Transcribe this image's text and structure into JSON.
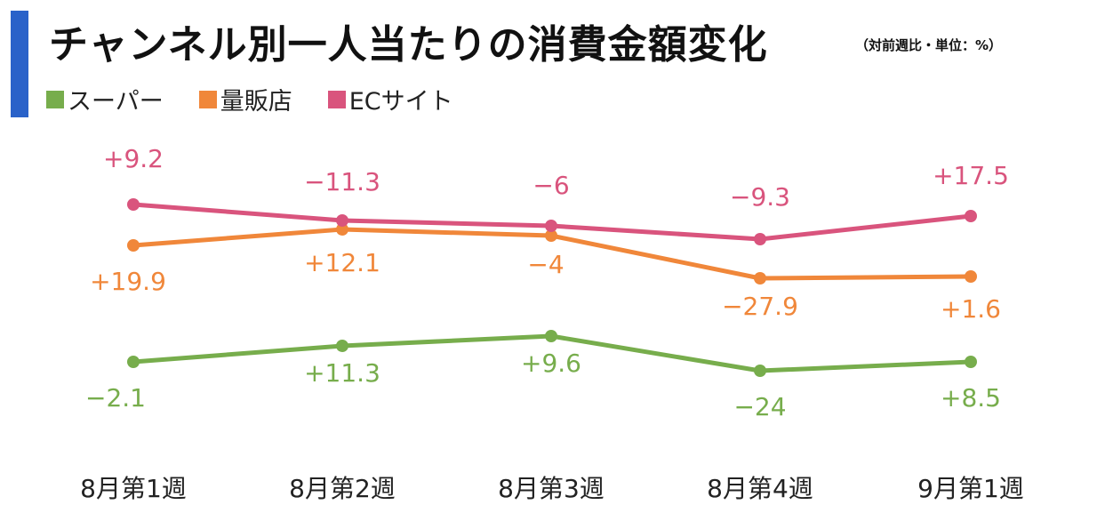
{
  "title": "チャンネル別一人当たりの消費金額変化",
  "subtitle": "（対前週比・単位：%）",
  "colors": {
    "accent": "#2a62c9"
  },
  "chart_data": {
    "type": "line",
    "categories": [
      "8月第1週",
      "8月第2週",
      "8月第3週",
      "8月第4週",
      "9月第1週"
    ],
    "series": [
      {
        "name": "スーパー",
        "color": "#77ad4c",
        "value_labels": [
          "−2.1",
          "+11.3",
          "+9.6",
          "−24",
          "+8.5"
        ],
        "label_position": "below"
      },
      {
        "name": "量販店",
        "color": "#f0873a",
        "value_labels": [
          "+19.9",
          "+12.1",
          "−4",
          "−27.9",
          "+1.6"
        ],
        "label_position": "below"
      },
      {
        "name": "ECサイト",
        "color": "#d9547d",
        "value_labels": [
          "+9.2",
          "−11.3",
          "−6",
          "−9.3",
          "+17.5"
        ],
        "label_position": "above"
      }
    ],
    "y_axis": "none",
    "grid": false,
    "legend_position": "top-left"
  }
}
